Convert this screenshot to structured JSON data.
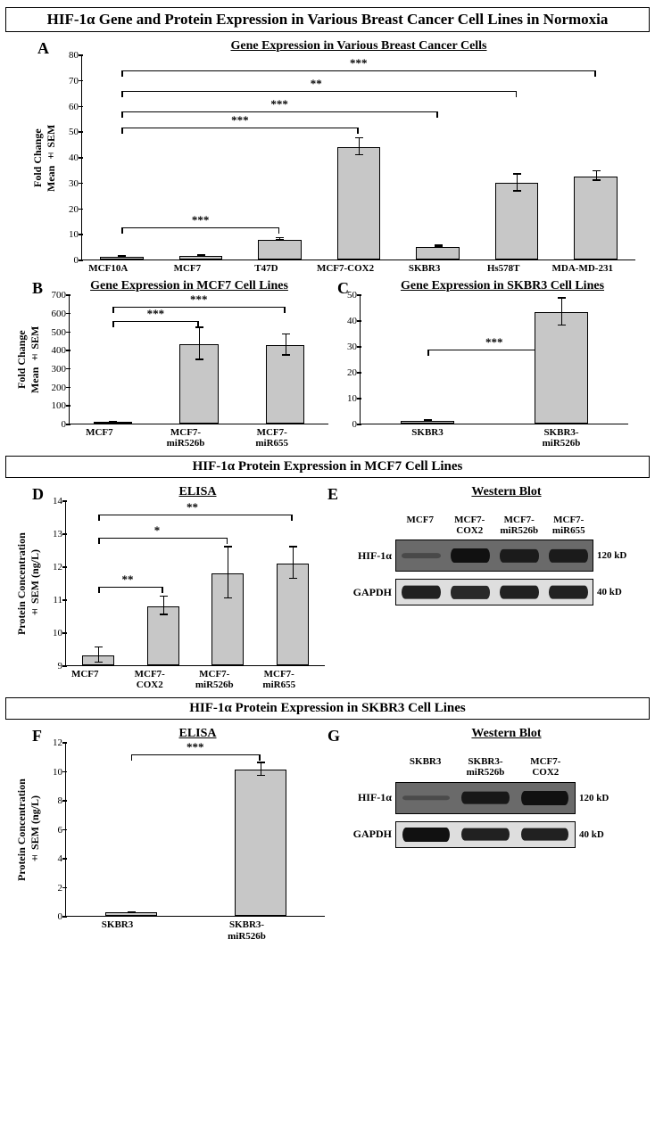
{
  "main_title": "HIF-1α Gene and Protein Expression in Various Breast Cancer Cell Lines in Normoxia",
  "panelA": {
    "letter": "A",
    "subtitle": "Gene Expression in Various Breast Cancer Cells",
    "ylabel": "Fold Change\nMean ± SEM",
    "ylim": [
      0,
      80
    ],
    "ytick_step": 10,
    "categories": [
      "MCF10A",
      "MCF7",
      "T47D",
      "MCF7-COX2",
      "SKBR3",
      "Hs578T",
      "MDA-MD-231"
    ],
    "values": [
      1,
      1.5,
      7.8,
      43.8,
      4.9,
      29.8,
      32.5
    ],
    "err": [
      0.3,
      0.4,
      0.7,
      3.6,
      0.6,
      3.6,
      2.1
    ],
    "bar_color": "#c7c7c7",
    "border_color": "#000000",
    "sig_brackets": [
      {
        "from": 0,
        "to": 2,
        "y": 13,
        "label": "***"
      },
      {
        "from": 0,
        "to": 3,
        "y": 52,
        "label": "***"
      },
      {
        "from": 0,
        "to": 4,
        "y": 58,
        "label": "***"
      },
      {
        "from": 0,
        "to": 5,
        "y": 66,
        "label": "**"
      },
      {
        "from": 0,
        "to": 6,
        "y": 74,
        "label": "***"
      }
    ]
  },
  "panelB": {
    "letter": "B",
    "subtitle": "Gene Expression in MCF7 Cell Lines",
    "ylabel": "Fold Change\nMean ± SEM",
    "ylim": [
      0,
      700
    ],
    "ytick_step": 100,
    "categories": [
      "MCF7",
      "MCF7-\nmiR526b",
      "MCF7-\nmiR655"
    ],
    "values": [
      2,
      430,
      425
    ],
    "err": [
      1,
      90,
      60
    ],
    "bar_color": "#c7c7c7",
    "sig_brackets": [
      {
        "from": 0,
        "to": 1,
        "y": 560,
        "label": "***"
      },
      {
        "from": 0,
        "to": 2,
        "y": 640,
        "label": "***"
      }
    ]
  },
  "panelC": {
    "letter": "C",
    "subtitle": "Gene Expression in SKBR3 Cell Lines",
    "ylim": [
      0,
      50
    ],
    "ytick_step": 10,
    "categories": [
      "SKBR3",
      "SKBR3-\nmiR526b"
    ],
    "values": [
      1,
      43
    ],
    "err": [
      0.3,
      5.5
    ],
    "bar_color": "#c7c7c7",
    "sig_brackets": [
      {
        "from": 0,
        "to": 1,
        "y": 29,
        "label": "***"
      }
    ]
  },
  "section_mcf7_title": "HIF-1α Protein Expression in MCF7 Cell Lines",
  "panelD": {
    "letter": "D",
    "subtitle": "ELISA",
    "ylabel": "Protein Concentration\n± SEM (ng/L)",
    "ylim": [
      9,
      14
    ],
    "ytick_step": 1,
    "categories": [
      "MCF7",
      "MCF7-\nCOX2",
      "MCF7-\nmiR526b",
      "MCF7-\nmiR655"
    ],
    "values": [
      9.3,
      10.8,
      11.8,
      12.1
    ],
    "err": [
      0.25,
      0.3,
      0.8,
      0.5
    ],
    "bar_color": "#c7c7c7",
    "sig_brackets": [
      {
        "from": 0,
        "to": 1,
        "y": 11.4,
        "label": "**"
      },
      {
        "from": 0,
        "to": 2,
        "y": 12.9,
        "label": "*"
      },
      {
        "from": 0,
        "to": 3,
        "y": 13.6,
        "label": "**"
      }
    ]
  },
  "panelE": {
    "letter": "E",
    "subtitle": "Western Blot",
    "lanes": [
      "MCF7",
      "MCF7-\nCOX2",
      "MCF7-\nmiR526b",
      "MCF7-\nmiR655"
    ],
    "rows": [
      {
        "label": "HIF-1α",
        "kd": "120 kD",
        "intensity": [
          0.15,
          1.0,
          0.85,
          0.85
        ]
      },
      {
        "label": "GAPDH",
        "kd": "40 kD",
        "intensity": [
          0.9,
          0.85,
          0.9,
          0.9
        ]
      }
    ]
  },
  "section_skbr3_title": "HIF-1α Protein Expression in SKBR3 Cell Lines",
  "panelF": {
    "letter": "F",
    "subtitle": "ELISA",
    "ylabel": "Protein Concentration\n± SEM (ng/L)",
    "ylim": [
      0,
      12
    ],
    "ytick_step": 2,
    "categories": [
      "SKBR3",
      "SKBR3-\nmiR526b"
    ],
    "values": [
      0.25,
      10.1
    ],
    "err": [
      0.05,
      0.5
    ],
    "bar_color": "#c7c7c7",
    "sig_brackets": [
      {
        "from": 0,
        "to": 1,
        "y": 11.2,
        "label": "***"
      }
    ]
  },
  "panelG": {
    "letter": "G",
    "subtitle": "Western Blot",
    "lanes": [
      "SKBR3",
      "SKBR3-\nmiR526b",
      "MCF7-\nCOX2"
    ],
    "rows": [
      {
        "label": "HIF-1α",
        "kd": "120 kD",
        "intensity": [
          0.12,
          0.9,
          1.0
        ]
      },
      {
        "label": "GAPDH",
        "kd": "40 kD",
        "intensity": [
          1.0,
          0.9,
          0.9
        ]
      }
    ]
  }
}
